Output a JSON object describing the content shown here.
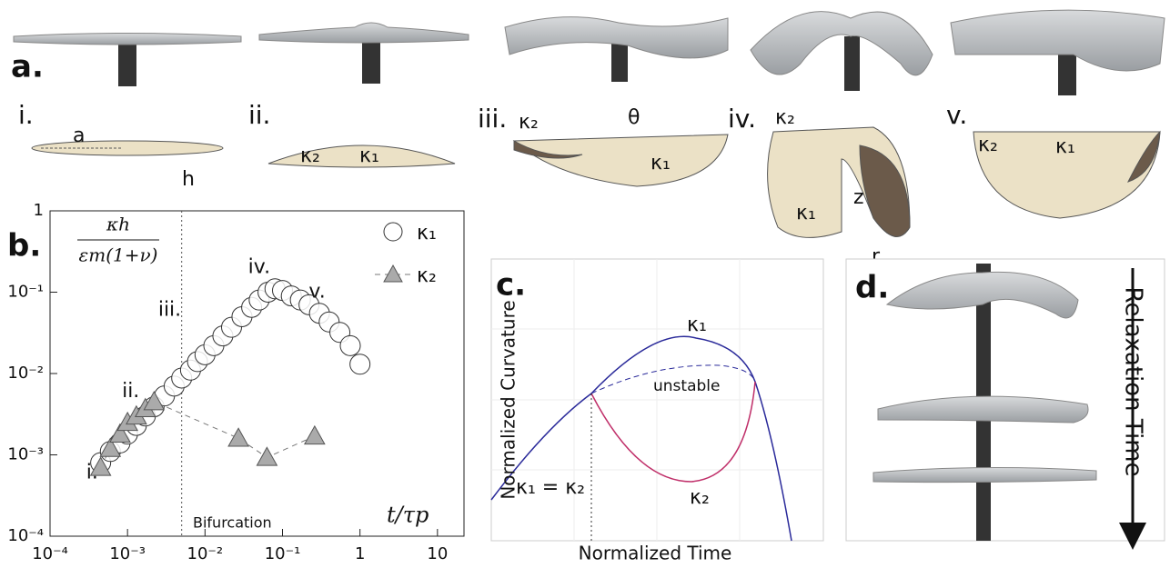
{
  "panel_a": {
    "label": "a.",
    "stages": [
      {
        "label": "i.",
        "symbols": [
          "a",
          "h"
        ]
      },
      {
        "label": "ii.",
        "symbols": [
          "κ₂",
          "κ₁"
        ]
      },
      {
        "label": "iii.",
        "symbols": [
          "κ₂",
          "θ",
          "κ₁"
        ]
      },
      {
        "label": "iv.",
        "symbols": [
          "κ₂",
          "κ₁",
          "z",
          "r"
        ]
      },
      {
        "label": "v.",
        "symbols": [
          "κ₂",
          "κ₁"
        ]
      }
    ]
  },
  "chart_data": {
    "type": "scatter",
    "panel_label": "b.",
    "y_label": [
      "κh",
      "εm(1+ν)"
    ],
    "x_label": "t/τp",
    "log_x": true,
    "log_y": true,
    "xlim": [
      0.0001,
      22
    ],
    "ylim": [
      0.0001,
      1
    ],
    "xticks": [
      {
        "value": 0.0001,
        "label": "10⁻⁴"
      },
      {
        "value": 0.001,
        "label": "10⁻³"
      },
      {
        "value": 0.01,
        "label": "10⁻²"
      },
      {
        "value": 0.1,
        "label": "10⁻¹"
      },
      1,
      10
    ],
    "yticks": [
      {
        "value": 0.0001,
        "label": "10⁻⁴"
      },
      {
        "value": 0.001,
        "label": "10⁻³"
      },
      {
        "value": 0.01,
        "label": "10⁻²"
      },
      {
        "value": 0.1,
        "label": "10⁻¹"
      },
      1
    ],
    "series": [
      {
        "name": "κ₁",
        "marker": "circle",
        "color": "#333333",
        "x": [
          0.00045,
          0.0006,
          0.0008,
          0.001,
          0.0013,
          0.0017,
          0.0022,
          0.003,
          0.004,
          0.005,
          0.0065,
          0.008,
          0.01,
          0.013,
          0.017,
          0.022,
          0.03,
          0.04,
          0.05,
          0.065,
          0.08,
          0.1,
          0.13,
          0.17,
          0.22,
          0.3,
          0.4,
          0.55,
          0.75,
          1
        ],
        "values": [
          0.0008,
          0.0011,
          0.0014,
          0.0018,
          0.0023,
          0.003,
          0.0039,
          0.0053,
          0.007,
          0.0088,
          0.011,
          0.014,
          0.017,
          0.022,
          0.029,
          0.037,
          0.05,
          0.065,
          0.08,
          0.1,
          0.11,
          0.105,
          0.09,
          0.08,
          0.07,
          0.055,
          0.043,
          0.032,
          0.022,
          0.013
        ]
      },
      {
        "name": "κ₂",
        "marker": "triangle",
        "color": "#aaaaaa",
        "linestyle": "dashed",
        "x": [
          0.00045,
          0.0006,
          0.0008,
          0.001,
          0.0013,
          0.0017,
          0.0022,
          0.027,
          0.063,
          0.26
        ],
        "values": [
          0.0007,
          0.0012,
          0.0018,
          0.0025,
          0.003,
          0.0037,
          0.0045,
          0.0016,
          0.00093,
          0.0017
        ]
      }
    ],
    "annotations": [
      {
        "text": "i.",
        "x": 0.00035,
        "y": 0.0006
      },
      {
        "text": "ii.",
        "x": 0.0011,
        "y": 0.006
      },
      {
        "text": "iii.",
        "x": 0.0035,
        "y": 0.06
      },
      {
        "text": "iv.",
        "x": 0.05,
        "y": 0.2
      },
      {
        "text": "v.",
        "x": 0.28,
        "y": 0.1
      }
    ],
    "bifurcation": {
      "text": "Bifurcation",
      "x": 0.005
    }
  },
  "panel_c": {
    "label": "c.",
    "y_label": "Normalized Curvature",
    "x_label": "Normalized Time",
    "kappa1": "κ₁",
    "kappa2": "κ₂",
    "unstable": "unstable",
    "equal": "κ₁ = κ₂"
  },
  "panel_d": {
    "label": "d.",
    "arrow_label": "Relaxation Time"
  }
}
